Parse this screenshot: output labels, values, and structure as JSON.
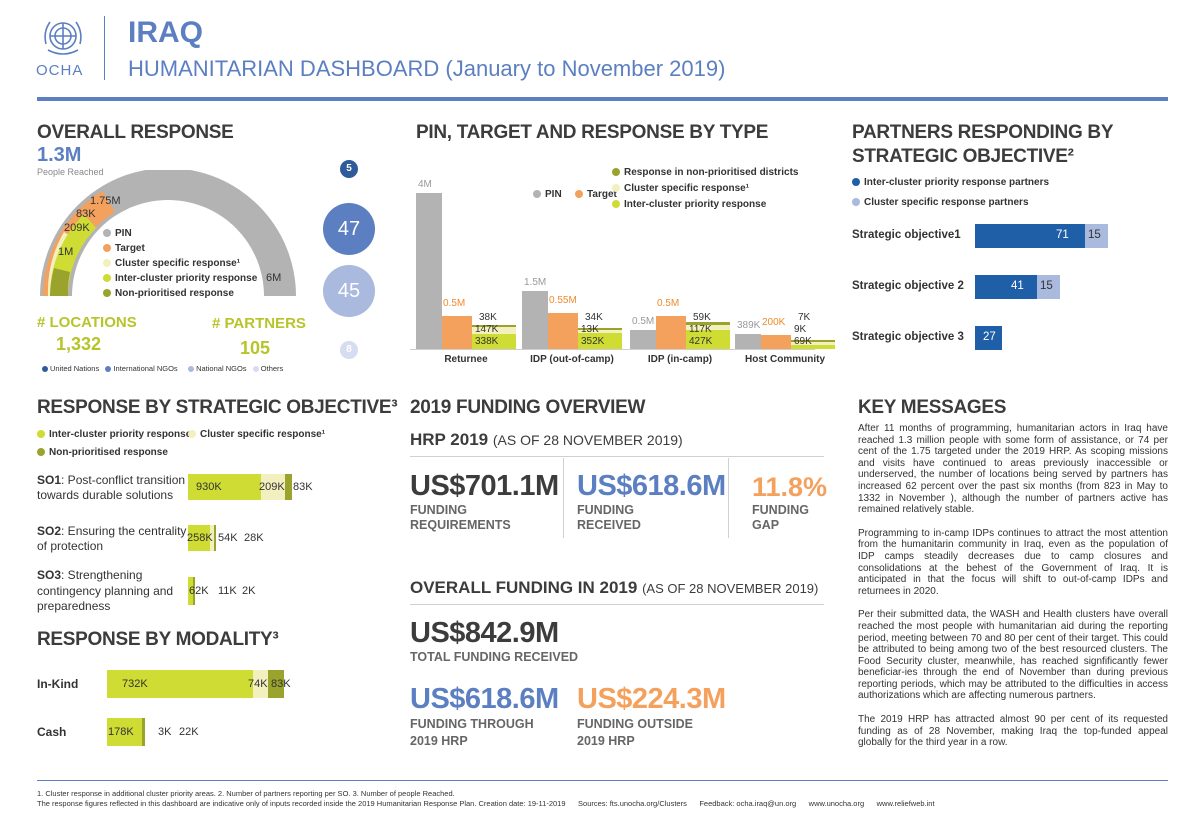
{
  "header": {
    "org": "OCHA",
    "country": "IRAQ",
    "title": "HUMANITARIAN DASHBOARD (January to November 2019)"
  },
  "colors": {
    "ocha_blue": "#5b7fc1",
    "dark_blue": "#1f5fa8",
    "pin_gray": "#b0b0b0",
    "target_orange": "#f4a15d",
    "inter_cluster": "#cedc34",
    "cluster_specific": "#f3f0c0",
    "non_prioritised": "#9aa32b"
  },
  "overall": {
    "title": "OVERALL RESPONSE",
    "people_reached": "1.3M",
    "people_reached_label": "People Reached",
    "arc_labels": {
      "pin": "6M",
      "target": "1.75M",
      "cluster": "83K",
      "inter": "209K",
      "total": "1M"
    },
    "legend": [
      "PIN",
      "Target",
      "Cluster specific response¹",
      "Inter-cluster priority response",
      "Non-prioritised response"
    ],
    "locations_label": "# LOCATIONS",
    "locations_value": "1,332",
    "partners_label": "# PARTNERS",
    "partners_value": "105",
    "partner_circles": [
      "5",
      "47",
      "45",
      "8"
    ],
    "partner_legend": [
      "United Nations",
      "International NGOs",
      "National NGOs",
      "Others"
    ]
  },
  "pin_chart": {
    "title": "PIN, TARGET AND RESPONSE BY TYPE",
    "legend": [
      "PIN",
      "Target",
      "Response in non-prioritised districts",
      "Cluster specific response¹",
      "Inter-cluster priority response"
    ],
    "chart_data": {
      "type": "bar",
      "categories": [
        "Returnee",
        "IDP (out-of-camp)",
        "IDP (in-camp)",
        "Host Community"
      ],
      "series": [
        {
          "name": "PIN",
          "labels": [
            "4M",
            "1.5M",
            "0.5M",
            "389K"
          ],
          "values": [
            4000,
            1500,
            500,
            389
          ]
        },
        {
          "name": "Target",
          "labels": [
            "0.5M",
            "0.55M",
            "0.5M",
            "200K"
          ],
          "values": [
            500,
            550,
            500,
            200
          ]
        },
        {
          "name": "Response non-prioritised",
          "labels": [
            "38K",
            "34K",
            "59K",
            "7K"
          ],
          "values": [
            38,
            34,
            59,
            7
          ]
        },
        {
          "name": "Cluster specific",
          "labels": [
            "147K",
            "13K",
            "117K",
            "9K"
          ],
          "values": [
            147,
            13,
            117,
            9
          ]
        },
        {
          "name": "Inter-cluster",
          "labels": [
            "338K",
            "352K",
            "427K",
            "69K"
          ],
          "values": [
            338,
            352,
            427,
            69
          ]
        }
      ]
    }
  },
  "partners_so": {
    "title1": "PARTNERS RESPONDING BY",
    "title2": "STRATEGIC OBJECTIVE²",
    "legend": [
      "Inter-cluster priority response partners",
      "Cluster specific response partners"
    ],
    "chart_data": {
      "type": "bar",
      "categories": [
        "Strategic objective1",
        "Strategic objective 2",
        "Strategic objective 3"
      ],
      "series": [
        {
          "name": "Inter-cluster priority response partners",
          "values": [
            71,
            41,
            27
          ]
        },
        {
          "name": "Cluster specific response partners",
          "values": [
            15,
            15,
            null
          ]
        }
      ]
    },
    "labels": [
      {
        "main": "71",
        "spec": "15"
      },
      {
        "main": "41",
        "spec": "15"
      },
      {
        "main": "27",
        "spec": ""
      }
    ]
  },
  "response_so": {
    "title": "RESPONSE BY STRATEGIC OBJECTIVE³",
    "legend": [
      "Inter-cluster priority response",
      "Cluster specific response¹",
      "Non-prioritised response"
    ],
    "rows": [
      {
        "code": "SO1",
        "text": ": Post-conflict transition",
        "text2": "towards durable solutions",
        "v1": "930K",
        "v2": "209K",
        "v3": "83K"
      },
      {
        "code": "SO2",
        "text": ": Ensuring the centrality",
        "text2": "of protection",
        "v1": "258K",
        "v2": "54K",
        "v3": "28K"
      },
      {
        "code": "SO3",
        "text": ": Strengthening",
        "text2": "contingency planning and",
        "text3": "preparedness",
        "v1": "62K",
        "v2": "11K",
        "v3": "2K"
      }
    ],
    "chart_data": {
      "type": "bar",
      "categories": [
        "SO1",
        "SO2",
        "SO3"
      ],
      "series": [
        {
          "name": "Inter-cluster priority response",
          "values": [
            930,
            258,
            62
          ]
        },
        {
          "name": "Cluster specific response",
          "values": [
            209,
            54,
            11
          ]
        },
        {
          "name": "Non-prioritised response",
          "values": [
            83,
            28,
            2
          ]
        }
      ]
    }
  },
  "modality": {
    "title": "RESPONSE BY MODALITY³",
    "rows": [
      {
        "name": "In-Kind",
        "v1": "732K",
        "v2": "74K",
        "v3": "83K"
      },
      {
        "name": "Cash",
        "v1": "178K",
        "v2": "3K",
        "v3": "22K"
      }
    ],
    "chart_data": {
      "type": "bar",
      "categories": [
        "In-Kind",
        "Cash"
      ],
      "series": [
        {
          "name": "Inter-cluster priority response",
          "values": [
            732,
            178
          ]
        },
        {
          "name": "Cluster specific response",
          "values": [
            74,
            3
          ]
        },
        {
          "name": "Non-prioritised response",
          "values": [
            83,
            22
          ]
        }
      ]
    }
  },
  "funding": {
    "title": "2019 FUNDING OVERVIEW",
    "hrp_title": "HRP 2019",
    "hrp_date": "(AS OF 28 NOVEMBER 2019)",
    "requirements_value": "US$701.1M",
    "requirements_label1": "FUNDING",
    "requirements_label2": "REQUIREMENTS",
    "received_value": "US$618.6M",
    "received_label1": "FUNDING",
    "received_label2": "RECEIVED",
    "gap_value": "11.8%",
    "gap_label1": "FUNDING",
    "gap_label2": "GAP",
    "overall_title": "OVERALL FUNDING IN 2019",
    "overall_date": "(AS OF 28 NOVEMBER 2019)",
    "total_value": "US$842.9M",
    "total_label": "TOTAL FUNDING RECEIVED",
    "through_value": "US$618.6M",
    "through_label1": "FUNDING THROUGH",
    "through_label2": "2019 HRP",
    "outside_value": "US$224.3M",
    "outside_label1": "FUNDING OUTSIDE",
    "outside_label2": "2019 HRP"
  },
  "key_messages": {
    "title": "KEY MESSAGES",
    "paragraphs": [
      "After 11 months of programming, humanitarian actors in Iraq have reached 1.3 million people with some form of assistance, or 74 per cent of the 1.75 targeted under the 2019 HRP.  As scoping missions and visits have continued to areas previously inaccessible or underserved, the number of locations being served by partners has increased 62 percent over the past six months (from 823 in May to 1332 in November ), although the number of partners active has remained relatively stable.",
      "Programming to in-camp IDPs continues to attract the most attention from the humanitarin community in Iraq, even as the population of IDP camps steadily decreases due to camp closures and consolidations at the behest of the Government of Iraq. It is anticipated in that the focus will shift to out-of-camp IDPs and returnees in 2020.",
      "Per their submitted data, the WASH and Health clusters have overall reached the most people with humanitarian aid during the reporting period, meeting between 70 and 80 per cent of their target. This could be attributed to being among two of the best resourced clusters. The Food Security cluster, meanwhile, has reached signfificantly fewer beneficiar-ies through the end of November than during previous reporting periods, which may be attributed to the difficulties in access authorizations which are affecting numerous partners.",
      "The 2019 HRP has attracted almost 90 per cent of its requested funding as of 28 November, making Iraq the top-funded appeal globally for the third year in a row."
    ]
  },
  "footer": {
    "line1": "1. Cluster response in additional cluster priority areas. 2. Number of partners reporting per SO. 3. Number of people Reached.",
    "line2": "The response figures reflected in this dashboard are indicative only of inputs recorded inside the 2019 Humanitarian Response Plan. Creation date: 19-11-2019      Sources: fts.unocha.org/Clusters      Feedback: ocha.iraq@un.org      www.unocha.org      www.reliefweb.int"
  }
}
